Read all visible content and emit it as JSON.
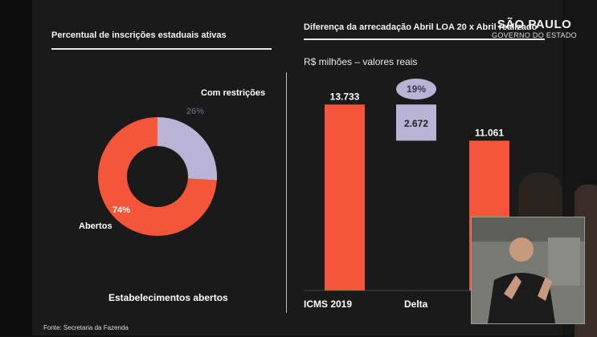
{
  "logo": {
    "main": "SÃO PAULO",
    "sub": "GOVERNO DO ESTADO"
  },
  "left_panel": {
    "title": "Percentual de inscrições estaduais ativas",
    "footer": "Estabelecimentos abertos"
  },
  "right_panel": {
    "title": "Diferença da arrecadação Abril LOA 20 x Abril  realizado",
    "unit": "R$ milhões – valores reais"
  },
  "source": "Fonte: Secretaria da Fazenda",
  "colors": {
    "accent": "#f5553a",
    "lavender": "#b9b4d6"
  },
  "chart_data": [
    {
      "type": "pie",
      "variant": "donut",
      "title": "Percentual de inscrições estaduais ativas",
      "slices": [
        {
          "label": "Abertos",
          "value": 74,
          "value_label": "74%",
          "color": "#f5553a"
        },
        {
          "label": "Com restrições",
          "value": 26,
          "value_label": "26%",
          "color": "#b9b4d6"
        }
      ],
      "caption": "Estabelecimentos abertos"
    },
    {
      "type": "bar",
      "variant": "waterfall",
      "title": "Diferença da arrecadação Abril LOA 20 x Abril  realizado",
      "ylabel": "R$ milhões – valores reais",
      "categories": [
        "ICMS 2019",
        "Delta",
        ""
      ],
      "values": [
        13733,
        2672,
        11061
      ],
      "value_labels": [
        "13.733",
        "2.672",
        "11.061"
      ],
      "delta_percent": "19%",
      "ylim": [
        0,
        16000
      ]
    }
  ]
}
